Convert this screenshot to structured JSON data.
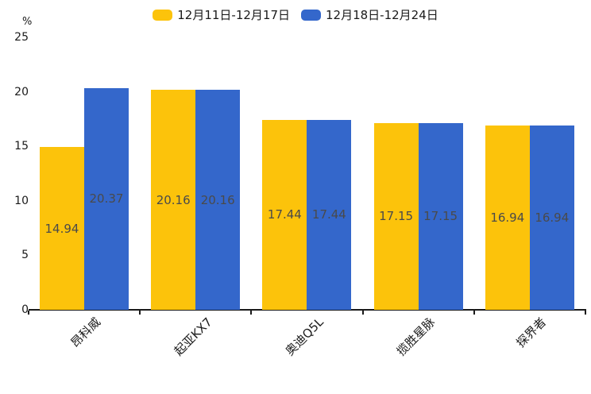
{
  "legend": {
    "items": [
      {
        "label": "12月11日-12月17日",
        "color": "#FCC30B"
      },
      {
        "label": "12月18日-12月24日",
        "color": "#3467CB"
      }
    ]
  },
  "chart_data": {
    "type": "bar",
    "title": "",
    "categories": [
      "昂科威",
      "起亚KX7",
      "奥迪Q5L",
      "揽胜星脉",
      "探界者"
    ],
    "series": [
      {
        "name": "12月11日-12月17日",
        "color": "#FCC30B",
        "values": [
          14.94,
          20.16,
          17.44,
          17.15,
          16.94
        ]
      },
      {
        "name": "12月18日-12月24日",
        "color": "#3467CB",
        "values": [
          20.37,
          20.16,
          17.44,
          17.15,
          16.94
        ]
      }
    ],
    "value_labels": [
      [
        "14.94",
        "20.16",
        "17.44",
        "17.15",
        "16.94"
      ],
      [
        "20.37",
        "20.16",
        "17.44",
        "17.15",
        "16.94"
      ]
    ],
    "ylabel": "%",
    "yticks": [
      "0",
      "5",
      "10",
      "15",
      "20",
      "25"
    ],
    "ylim": [
      0,
      25
    ],
    "grid": false,
    "legend_position": "top",
    "xtick_rotation_deg": 45,
    "value_label_color": "#4a4a4a",
    "axis_color": "#1a1a1a"
  }
}
